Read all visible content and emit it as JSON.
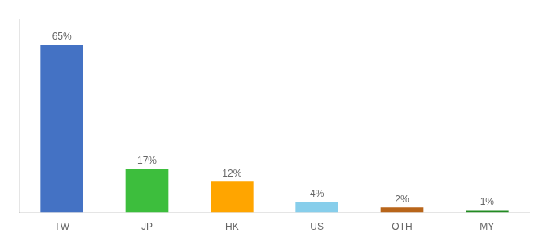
{
  "chart_data": {
    "type": "bar",
    "categories": [
      "TW",
      "JP",
      "HK",
      "US",
      "OTH",
      "MY"
    ],
    "values": [
      65,
      17,
      12,
      4,
      2,
      1
    ],
    "colors": [
      "#4472C4",
      "#3DBE3D",
      "#FFA500",
      "#87CEEB",
      "#B8651A",
      "#228B22"
    ],
    "value_labels": [
      "65%",
      "17%",
      "12%",
      "4%",
      "2%",
      "1%"
    ],
    "data_labels": true,
    "ylim": [
      0,
      75
    ],
    "grid": false,
    "tick_labels": "x"
  }
}
